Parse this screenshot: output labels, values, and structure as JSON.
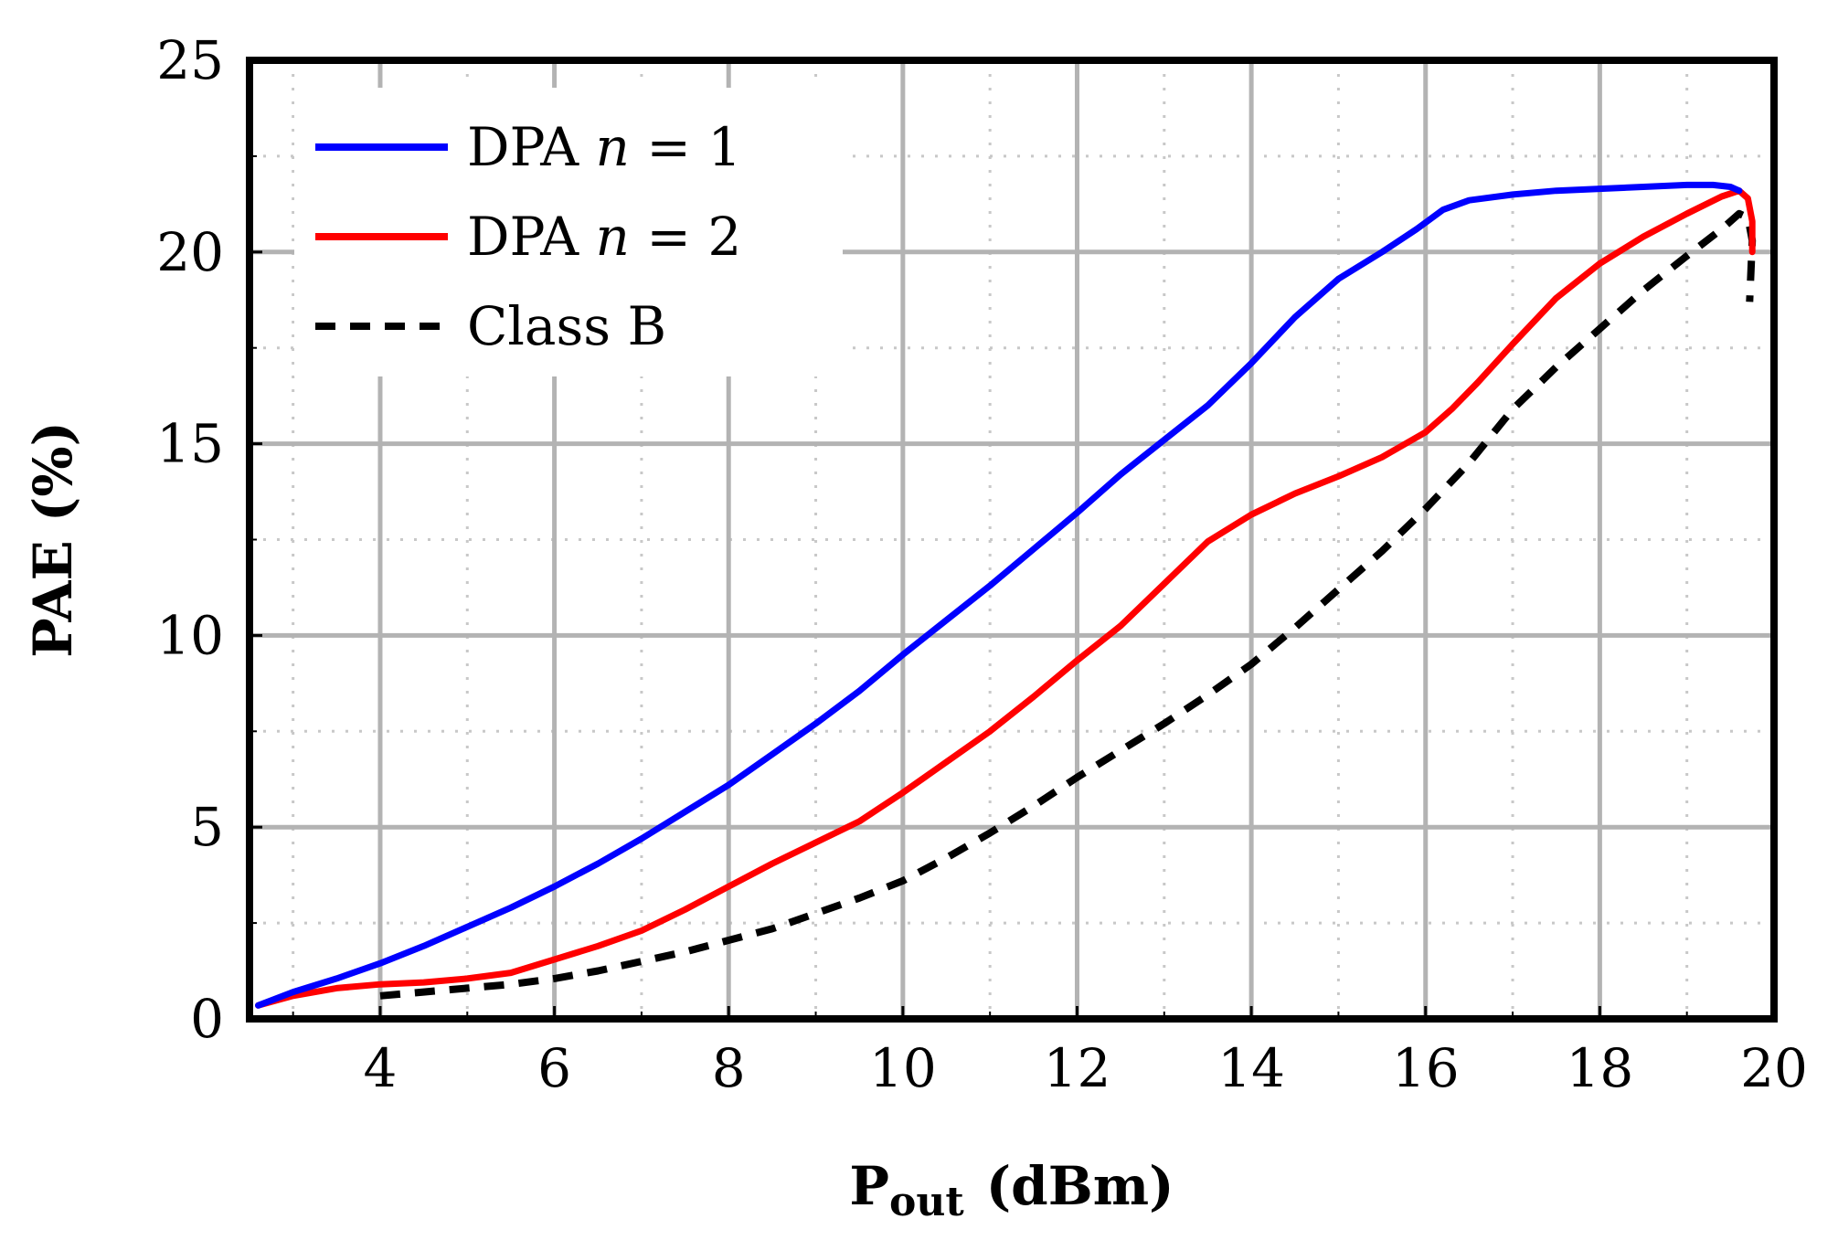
{
  "chart_data": {
    "type": "line",
    "title": "",
    "xlabel": "P",
    "xlabel_sub": "out",
    "xlabel_unit": "(dBm)",
    "ylabel": "PAE (%)",
    "xlim": [
      2.5,
      20
    ],
    "ylim": [
      0,
      25
    ],
    "xticks": [
      4,
      6,
      8,
      10,
      12,
      14,
      16,
      18,
      20
    ],
    "xtick_labels": [
      "4",
      "6",
      "8",
      "10",
      "12",
      "14",
      "16",
      "18",
      "20"
    ],
    "yticks": [
      0,
      5,
      10,
      15,
      20,
      25
    ],
    "ytick_labels": [
      "0",
      "5",
      "10",
      "15",
      "20",
      "25"
    ],
    "x_minor_ticks": [
      3,
      5,
      7,
      9,
      11,
      13,
      15,
      17,
      19
    ],
    "y_minor_ticks": [
      2.5,
      7.5,
      12.5,
      17.5,
      22.5
    ],
    "grid": true,
    "legend_position": "top-left",
    "series": [
      {
        "name": "DPA n = 1",
        "legend_prefix": "DPA ",
        "legend_var": "n",
        "legend_suffix": " = 1",
        "color": "#0000ff",
        "style": "solid",
        "x": [
          2.6,
          3.0,
          3.5,
          4.0,
          4.5,
          5.0,
          5.5,
          6.0,
          6.5,
          7.0,
          7.5,
          8.0,
          8.5,
          9.0,
          9.5,
          10.0,
          10.5,
          11.0,
          11.5,
          12.0,
          12.5,
          13.0,
          13.5,
          14.0,
          14.5,
          15.0,
          15.5,
          15.9,
          16.2,
          16.5,
          17.0,
          17.5,
          18.0,
          18.5,
          19.0,
          19.3,
          19.5,
          19.6
        ],
        "y": [
          0.35,
          0.7,
          1.05,
          1.45,
          1.9,
          2.4,
          2.9,
          3.45,
          4.05,
          4.7,
          5.4,
          6.1,
          6.9,
          7.7,
          8.55,
          9.5,
          10.4,
          11.3,
          12.25,
          13.2,
          14.2,
          15.1,
          16.0,
          17.1,
          18.3,
          19.3,
          20.0,
          20.6,
          21.1,
          21.35,
          21.5,
          21.6,
          21.65,
          21.7,
          21.75,
          21.75,
          21.7,
          21.6
        ]
      },
      {
        "name": "DPA n = 2",
        "legend_prefix": "DPA ",
        "legend_var": "n",
        "legend_suffix": " = 2",
        "color": "#ff0000",
        "style": "solid",
        "x": [
          2.6,
          3.0,
          3.5,
          4.0,
          4.5,
          5.0,
          5.5,
          6.0,
          6.5,
          7.0,
          7.5,
          8.0,
          8.5,
          9.0,
          9.5,
          10.0,
          10.5,
          11.0,
          11.5,
          12.0,
          12.5,
          13.0,
          13.5,
          14.0,
          14.5,
          15.0,
          15.5,
          16.0,
          16.3,
          16.6,
          17.0,
          17.5,
          18.0,
          18.5,
          19.0,
          19.4,
          19.6,
          19.7,
          19.75,
          19.75
        ],
        "y": [
          0.35,
          0.6,
          0.8,
          0.9,
          0.95,
          1.05,
          1.2,
          1.55,
          1.9,
          2.3,
          2.85,
          3.45,
          4.05,
          4.6,
          5.15,
          5.9,
          6.7,
          7.5,
          8.4,
          9.35,
          10.25,
          11.35,
          12.45,
          13.15,
          13.7,
          14.15,
          14.65,
          15.3,
          15.9,
          16.6,
          17.6,
          18.8,
          19.7,
          20.4,
          21.0,
          21.45,
          21.6,
          21.4,
          20.8,
          20.0
        ]
      },
      {
        "name": "Class B",
        "color": "#000000",
        "style": "dashed",
        "x": [
          4.0,
          4.5,
          5.0,
          5.5,
          6.0,
          6.5,
          7.0,
          7.5,
          8.0,
          8.5,
          9.0,
          9.5,
          10.0,
          10.5,
          11.0,
          11.5,
          12.0,
          12.5,
          13.0,
          13.5,
          14.0,
          14.5,
          15.0,
          15.5,
          16.0,
          16.5,
          17.0,
          17.5,
          18.0,
          18.5,
          19.0,
          19.4,
          19.6,
          19.7,
          19.75,
          19.72
        ],
        "y": [
          0.6,
          0.7,
          0.8,
          0.9,
          1.05,
          1.25,
          1.5,
          1.75,
          2.05,
          2.35,
          2.75,
          3.15,
          3.6,
          4.2,
          4.85,
          5.55,
          6.3,
          7.0,
          7.7,
          8.45,
          9.25,
          10.2,
          11.2,
          12.2,
          13.3,
          14.5,
          15.9,
          17.0,
          18.0,
          19.0,
          19.9,
          20.6,
          21.0,
          20.9,
          20.3,
          18.7
        ]
      }
    ]
  }
}
